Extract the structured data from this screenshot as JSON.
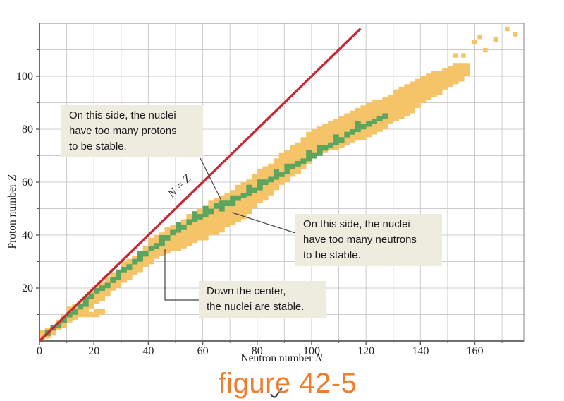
{
  "figure": {
    "caption": "figure 42-5",
    "caption_color": "#ee7d2e"
  },
  "annotations": {
    "protons": {
      "lines": [
        "On this side, the nuclei",
        "have too many protons",
        "to be stable."
      ]
    },
    "neutrons": {
      "lines": [
        "On this side, the nuclei",
        "have too many neutrons",
        "to be stable."
      ]
    },
    "stable": {
      "lines": [
        "Down the center,",
        "the nuclei are stable."
      ]
    }
  },
  "chart_data": {
    "type": "scatter",
    "title": "",
    "xlabel": "Neutron number N",
    "ylabel": "Proton number Z",
    "xlim": [
      0,
      178
    ],
    "ylim": [
      0,
      120
    ],
    "x_ticks": [
      0,
      20,
      40,
      60,
      80,
      100,
      120,
      140,
      160
    ],
    "y_ticks": [
      20,
      40,
      60,
      80,
      100
    ],
    "grid": true,
    "grid_step": 10,
    "legend": "none",
    "diagonal_line": {
      "label": "N = Z",
      "from": [
        0,
        0
      ],
      "to": [
        118,
        118
      ],
      "color": "#c52a35"
    },
    "colors": {
      "unstable_band": "#f6c468",
      "stable": "#5ca55e",
      "grid": "#cccccc",
      "frame": "#999999",
      "axis": "#5e5e5e",
      "tick_text": "#222222",
      "connector": "#45434b"
    },
    "series": [
      {
        "name": "unstable-band",
        "role": "unstable nuclei band (orange), columns of [N, Zmin, Zmax]",
        "columns": [
          [
            0,
            0,
            4
          ],
          [
            2,
            1,
            5
          ],
          [
            4,
            2,
            6
          ],
          [
            6,
            4,
            8
          ],
          [
            8,
            5,
            10
          ],
          [
            10,
            7,
            13
          ],
          [
            12,
            8,
            14
          ],
          [
            14,
            9,
            15
          ],
          [
            16,
            10,
            17
          ],
          [
            18,
            12,
            19
          ],
          [
            20,
            14,
            21
          ],
          [
            22,
            15,
            22
          ],
          [
            24,
            17,
            24
          ],
          [
            26,
            19,
            26
          ],
          [
            28,
            20,
            27
          ],
          [
            30,
            22,
            30
          ],
          [
            32,
            23,
            31
          ],
          [
            34,
            25,
            32
          ],
          [
            36,
            26,
            34
          ],
          [
            38,
            28,
            36
          ],
          [
            40,
            29,
            39
          ],
          [
            42,
            31,
            40
          ],
          [
            44,
            32,
            41
          ],
          [
            46,
            33,
            43
          ],
          [
            48,
            34,
            44
          ],
          [
            50,
            34,
            45
          ],
          [
            52,
            35,
            46
          ],
          [
            54,
            36,
            48
          ],
          [
            56,
            37,
            49
          ],
          [
            58,
            38,
            50
          ],
          [
            60,
            38,
            51
          ],
          [
            62,
            40,
            53
          ],
          [
            64,
            40,
            54
          ],
          [
            66,
            41,
            55
          ],
          [
            68,
            43,
            56
          ],
          [
            70,
            44,
            57
          ],
          [
            72,
            45,
            59
          ],
          [
            74,
            46,
            60
          ],
          [
            76,
            48,
            61
          ],
          [
            78,
            50,
            63
          ],
          [
            80,
            52,
            65
          ],
          [
            82,
            53,
            66
          ],
          [
            84,
            55,
            67
          ],
          [
            86,
            57,
            69
          ],
          [
            88,
            59,
            71
          ],
          [
            90,
            60,
            72
          ],
          [
            92,
            62,
            74
          ],
          [
            94,
            63,
            75
          ],
          [
            96,
            65,
            77
          ],
          [
            98,
            67,
            79
          ],
          [
            100,
            69,
            80
          ],
          [
            102,
            70,
            81
          ],
          [
            104,
            71,
            82
          ],
          [
            106,
            72,
            83
          ],
          [
            108,
            72,
            84
          ],
          [
            110,
            73,
            85
          ],
          [
            112,
            74,
            86
          ],
          [
            114,
            75,
            87
          ],
          [
            116,
            76,
            88
          ],
          [
            118,
            76,
            89
          ],
          [
            120,
            77,
            90
          ],
          [
            122,
            78,
            91
          ],
          [
            124,
            79,
            91
          ],
          [
            126,
            80,
            92
          ],
          [
            128,
            82,
            93
          ],
          [
            130,
            83,
            95
          ],
          [
            132,
            84,
            96
          ],
          [
            134,
            85,
            97
          ],
          [
            136,
            86,
            98
          ],
          [
            138,
            88,
            99
          ],
          [
            140,
            90,
            100
          ],
          [
            142,
            91,
            101
          ],
          [
            144,
            92,
            102
          ],
          [
            146,
            93,
            102
          ],
          [
            148,
            95,
            103
          ],
          [
            150,
            96,
            104
          ],
          [
            152,
            97,
            105
          ],
          [
            154,
            98,
            105
          ],
          [
            156,
            100,
            105
          ],
          [
            16,
            9,
            11
          ],
          [
            18,
            9,
            11
          ],
          [
            20,
            9,
            12
          ],
          [
            22,
            10,
            12
          ]
        ]
      },
      {
        "name": "stable-nuclei",
        "role": "stable nuclei (green), cells of [N, Z]",
        "cells": [
          [
            2,
            2
          ],
          [
            4,
            4
          ],
          [
            6,
            5
          ],
          [
            8,
            7
          ],
          [
            10,
            9
          ],
          [
            12,
            10
          ],
          [
            14,
            12
          ],
          [
            16,
            13
          ],
          [
            16,
            15
          ],
          [
            18,
            16
          ],
          [
            20,
            18
          ],
          [
            22,
            19
          ],
          [
            24,
            20
          ],
          [
            26,
            22
          ],
          [
            28,
            23
          ],
          [
            28,
            25
          ],
          [
            30,
            26
          ],
          [
            32,
            27
          ],
          [
            34,
            29
          ],
          [
            36,
            30
          ],
          [
            36,
            32
          ],
          [
            38,
            32
          ],
          [
            40,
            34
          ],
          [
            42,
            35
          ],
          [
            44,
            36
          ],
          [
            44,
            38
          ],
          [
            46,
            38
          ],
          [
            48,
            40
          ],
          [
            50,
            41
          ],
          [
            50,
            43
          ],
          [
            52,
            42
          ],
          [
            54,
            44
          ],
          [
            56,
            45
          ],
          [
            56,
            47
          ],
          [
            58,
            46
          ],
          [
            60,
            47
          ],
          [
            60,
            49
          ],
          [
            62,
            48
          ],
          [
            64,
            50
          ],
          [
            66,
            49
          ],
          [
            66,
            51
          ],
          [
            68,
            51
          ],
          [
            70,
            51
          ],
          [
            70,
            53
          ],
          [
            72,
            53
          ],
          [
            74,
            54
          ],
          [
            76,
            55
          ],
          [
            76,
            57
          ],
          [
            78,
            56
          ],
          [
            80,
            57
          ],
          [
            80,
            59
          ],
          [
            82,
            59
          ],
          [
            84,
            60
          ],
          [
            86,
            61
          ],
          [
            86,
            63
          ],
          [
            88,
            62
          ],
          [
            90,
            63
          ],
          [
            90,
            65
          ],
          [
            92,
            65
          ],
          [
            94,
            66
          ],
          [
            96,
            67
          ],
          [
            98,
            68
          ],
          [
            98,
            70
          ],
          [
            100,
            69
          ],
          [
            102,
            70
          ],
          [
            102,
            72
          ],
          [
            104,
            72
          ],
          [
            106,
            73
          ],
          [
            108,
            74
          ],
          [
            108,
            76
          ],
          [
            110,
            75
          ],
          [
            112,
            77
          ],
          [
            114,
            78
          ],
          [
            116,
            79
          ],
          [
            116,
            81
          ],
          [
            118,
            80
          ],
          [
            120,
            81
          ],
          [
            122,
            82
          ],
          [
            124,
            83
          ],
          [
            126,
            84
          ]
        ]
      },
      {
        "name": "scattered-unstable",
        "role": "isolated superheavy unstable nuclei (orange), cells of [N, Z]",
        "cells": [
          [
            152,
            107
          ],
          [
            155,
            107
          ],
          [
            159,
            112
          ],
          [
            161,
            114
          ],
          [
            163,
            109
          ],
          [
            167,
            113
          ],
          [
            171,
            117
          ],
          [
            174,
            115
          ]
        ]
      }
    ]
  }
}
